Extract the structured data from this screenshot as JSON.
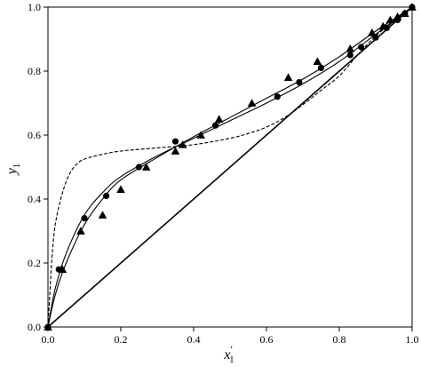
{
  "chart_data": {
    "type": "scatter",
    "title": "",
    "xlabel": "x",
    "xlabel_prime": "′",
    "xlabel_sub": "1",
    "ylabel": "y",
    "ylabel_sub": "1",
    "xlim": [
      0,
      1
    ],
    "ylim": [
      0,
      1
    ],
    "xticks": [
      "0.0",
      "0.2",
      "0.4",
      "0.6",
      "0.8",
      "1.0"
    ],
    "yticks": [
      "0.0",
      "0.2",
      "0.4",
      "0.6",
      "0.8",
      "1.0"
    ],
    "grid": false,
    "legend": "none",
    "series": [
      {
        "marker": "circle",
        "x": [
          0.0,
          0.03,
          0.1,
          0.16,
          0.25,
          0.35,
          0.46,
          0.63,
          0.69,
          0.75,
          0.83,
          0.86,
          0.9,
          0.93,
          0.96,
          0.98,
          1.0
        ],
        "y": [
          0.0,
          0.18,
          0.34,
          0.41,
          0.5,
          0.58,
          0.63,
          0.72,
          0.765,
          0.81,
          0.85,
          0.875,
          0.905,
          0.935,
          0.96,
          0.98,
          1.0
        ]
      },
      {
        "marker": "triangle",
        "x": [
          0.0,
          0.04,
          0.09,
          0.15,
          0.2,
          0.27,
          0.35,
          0.37,
          0.42,
          0.47,
          0.56,
          0.66,
          0.74,
          0.83,
          0.89,
          0.92,
          0.94,
          0.96,
          0.98,
          1.0
        ],
        "y": [
          0.0,
          0.18,
          0.3,
          0.35,
          0.43,
          0.5,
          0.55,
          0.57,
          0.6,
          0.65,
          0.7,
          0.78,
          0.83,
          0.87,
          0.92,
          0.94,
          0.96,
          0.97,
          0.98,
          1.0
        ]
      },
      {
        "line": "solid",
        "x": [
          0.0,
          0.02,
          0.05,
          0.1,
          0.15,
          0.2,
          0.3,
          0.4,
          0.5,
          0.6,
          0.7,
          0.8,
          0.9,
          1.0
        ],
        "y": [
          0.0,
          0.12,
          0.23,
          0.35,
          0.42,
          0.47,
          0.535,
          0.59,
          0.645,
          0.7,
          0.76,
          0.83,
          0.915,
          1.0
        ]
      },
      {
        "line": "solid",
        "x": [
          0.0,
          0.02,
          0.05,
          0.1,
          0.15,
          0.2,
          0.3,
          0.4,
          0.5,
          0.6,
          0.7,
          0.8,
          0.9,
          1.0
        ],
        "y": [
          0.0,
          0.1,
          0.2,
          0.32,
          0.4,
          0.46,
          0.53,
          0.595,
          0.655,
          0.715,
          0.775,
          0.845,
          0.925,
          1.0
        ]
      },
      {
        "line": "dashed",
        "x": [
          0.0,
          0.005,
          0.01,
          0.02,
          0.04,
          0.06,
          0.08,
          0.1,
          0.15,
          0.2,
          0.3,
          0.4,
          0.5,
          0.55,
          0.6,
          0.65,
          0.7,
          0.75,
          0.8,
          0.85,
          0.9,
          0.95,
          1.0
        ],
        "y": [
          0.0,
          0.1,
          0.2,
          0.32,
          0.42,
          0.48,
          0.51,
          0.525,
          0.54,
          0.55,
          0.56,
          0.57,
          0.59,
          0.605,
          0.625,
          0.655,
          0.695,
          0.74,
          0.785,
          0.85,
          0.91,
          0.955,
          1.0
        ]
      },
      {
        "line": "diagonal",
        "x": [
          0,
          1
        ],
        "y": [
          0,
          1
        ]
      }
    ]
  }
}
